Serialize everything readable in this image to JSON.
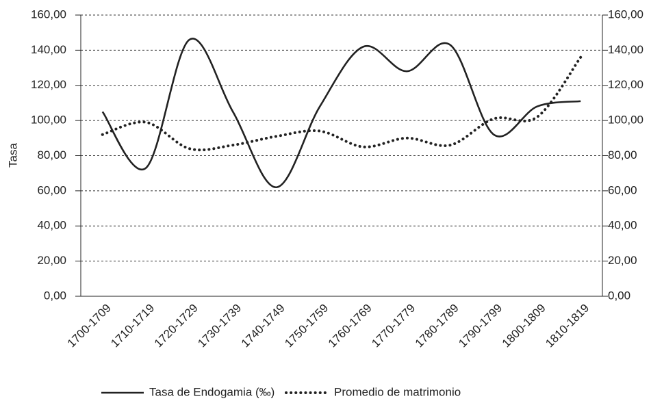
{
  "chart_data": {
    "type": "line",
    "y_label": "Tasa",
    "categories": [
      "1700-1709",
      "1710-1719",
      "1720-1729",
      "1730-1739",
      "1740-1749",
      "1750-1759",
      "1760-1769",
      "1770-1779",
      "1780-1789",
      "1790-1799",
      "1800-1809",
      "1810-1819"
    ],
    "series": [
      {
        "name": "Tasa de Endogamia (‰)",
        "color": "#222222",
        "style": "solid",
        "values": [
          105,
          73,
          146,
          105,
          62,
          108,
          142,
          128,
          143,
          92,
          108,
          111
        ]
      },
      {
        "name": "Promedio de matrimonio",
        "color": "#222222",
        "style": "dotted",
        "axis": "y2",
        "values": [
          92,
          99,
          84,
          86,
          91,
          94,
          85,
          90,
          86,
          101,
          102,
          136
        ]
      }
    ],
    "ylim": [
      0,
      160
    ],
    "yticks": [
      {
        "value": 0,
        "label": "0,00"
      },
      {
        "value": 20,
        "label": "20,00"
      },
      {
        "value": 40,
        "label": "40,00"
      },
      {
        "value": 60,
        "label": "60,00"
      },
      {
        "value": 80,
        "label": "80,00"
      },
      {
        "value": 100,
        "label": "100,00"
      },
      {
        "value": 120,
        "label": "120,00"
      },
      {
        "value": 140,
        "label": "140,00"
      },
      {
        "value": 160,
        "label": "160,00"
      }
    ],
    "y2lim": [
      0,
      160
    ],
    "y2ticks": [
      {
        "value": 0,
        "label": "0,00"
      },
      {
        "value": 20,
        "label": "20,00"
      },
      {
        "value": 40,
        "label": "40,00"
      },
      {
        "value": 60,
        "label": "60,00"
      },
      {
        "value": 80,
        "label": "80,00"
      },
      {
        "value": 100,
        "label": "100,00"
      },
      {
        "value": 120,
        "label": "120,00"
      },
      {
        "value": 140,
        "label": "140,00"
      },
      {
        "value": 160,
        "label": "160,00"
      }
    ],
    "grid": true,
    "legend": "bottom"
  }
}
